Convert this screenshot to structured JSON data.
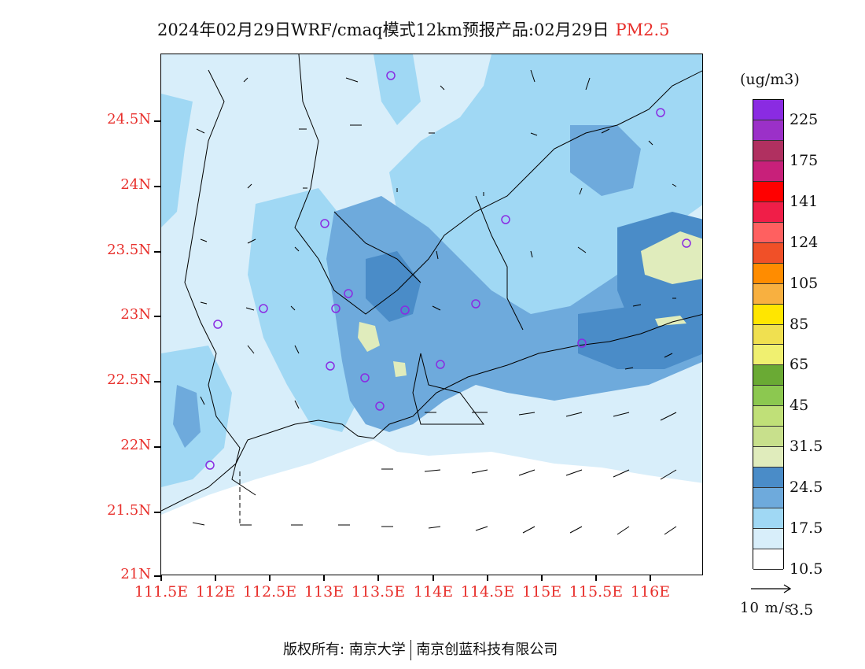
{
  "title": {
    "text": "2024年02月29日WRF/cmaq模式12km预报产品:02月29日",
    "pollutant": "PM2.5"
  },
  "map": {
    "lat_labels": [
      "24.5N",
      "24N",
      "23.5N",
      "23N",
      "22.5N",
      "22N",
      "21.5N",
      "21N"
    ],
    "lon_labels": [
      "111.5E",
      "112E",
      "112.5E",
      "113E",
      "113.5E",
      "114E",
      "114.5E",
      "115E",
      "115.5E",
      "116E"
    ],
    "lon_extent": [
      111.5,
      116.5
    ],
    "lat_extent": [
      21.0,
      25.0
    ],
    "station_color": "#8a2be2",
    "land_border_color": "#000000"
  },
  "legend": {
    "unit": "(ug/m3)",
    "labels": [
      "225",
      "175",
      "141",
      "124",
      "105",
      "85",
      "65",
      "45",
      "31.5",
      "24.5",
      "17.5",
      "10.5",
      "3.5"
    ],
    "colors": [
      "#8a2be2",
      "#9b30c8",
      "#b03060",
      "#c8207a",
      "#ff0000",
      "#f01e48",
      "#ff6060",
      "#f05028",
      "#ff8c00",
      "#f8b040",
      "#ffe600",
      "#f0e050",
      "#f0f070",
      "#6aaa34",
      "#8cc850",
      "#c0e078",
      "#c8e08c",
      "#e0ecbc",
      "#4a8cc8",
      "#6eaadc",
      "#a0d8f4",
      "#d8eefa",
      "#ffffff"
    ]
  },
  "wind_reference": {
    "label": "10 m/s"
  },
  "footer": {
    "copyright_left": "版权所有: 南京大学",
    "copyright_right": "南京创蓝科技有限公司"
  }
}
